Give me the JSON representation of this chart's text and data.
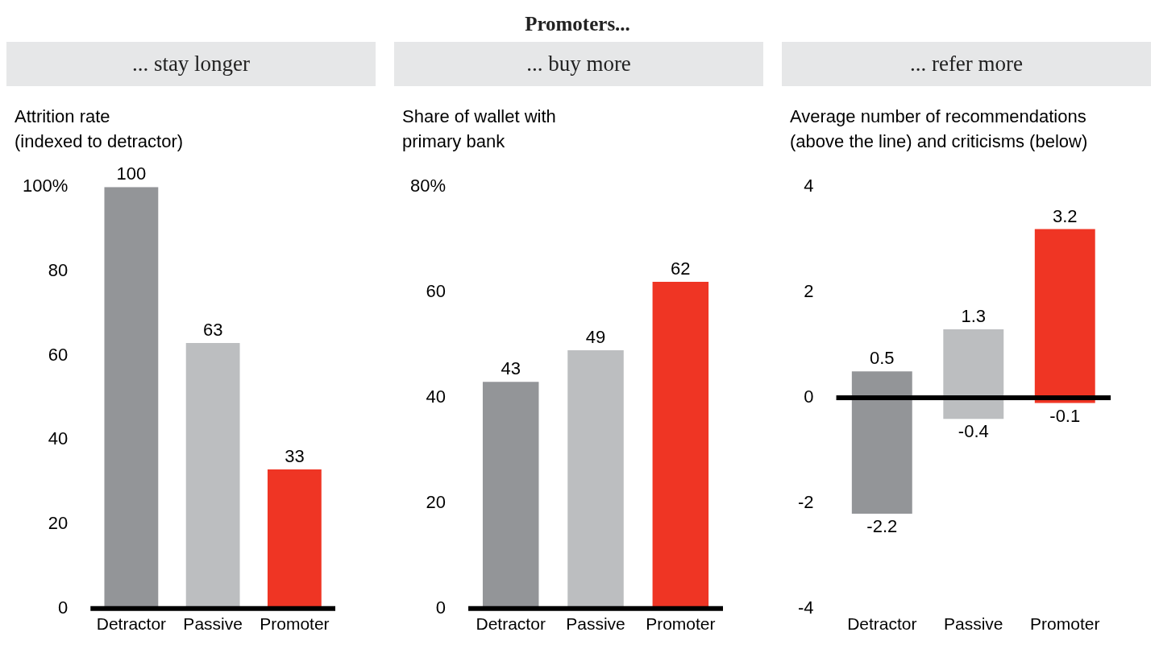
{
  "chart_data": [
    {
      "type": "bar",
      "annotations": [
        "Promoters..."
      ],
      "title": "... stay longer",
      "subtitle": "Attrition rate\n(indexed to detractor)",
      "categories": [
        "Detractor",
        "Passive",
        "Promoter"
      ],
      "values": [
        100,
        63,
        33
      ],
      "colors": [
        "#939598",
        "#bcbec0",
        "#ef3524"
      ],
      "ylim": [
        0,
        100
      ],
      "yticks": [
        0,
        20,
        40,
        60,
        80,
        {
          "value": 100,
          "label": "100%"
        }
      ],
      "data_labels": true
    },
    {
      "type": "bar",
      "title": "... buy more",
      "subtitle": "Share of wallet with\nprimary bank",
      "categories": [
        "Detractor",
        "Passive",
        "Promoter"
      ],
      "values": [
        43,
        49,
        62
      ],
      "colors": [
        "#939598",
        "#bcbec0",
        "#ef3524"
      ],
      "ylim": [
        0,
        80
      ],
      "yticks": [
        0,
        20,
        40,
        60,
        {
          "value": 80,
          "label": "80%"
        }
      ],
      "data_labels": true
    },
    {
      "type": "bar",
      "title": "... refer more",
      "subtitle": "Average number of recommendations\n(above the line) and criticisms (below)",
      "categories": [
        "Detractor",
        "Passive",
        "Promoter"
      ],
      "stacked": true,
      "series": [
        {
          "values": [
            0.5,
            1.3,
            3.2
          ],
          "colors": [
            "#939598",
            "#bcbec0",
            "#ef3524"
          ]
        },
        {
          "values": [
            -2.2,
            -0.4,
            -0.1
          ],
          "colors": [
            "#939598",
            "#bcbec0",
            "#ef3524"
          ]
        }
      ],
      "ylim": [
        -4,
        4
      ],
      "yticks": [
        -4,
        -2,
        0,
        2,
        4
      ],
      "data_labels": true
    }
  ]
}
